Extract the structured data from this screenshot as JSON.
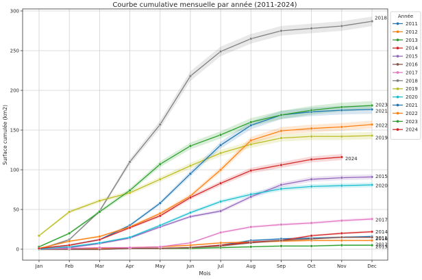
{
  "chart_data": {
    "type": "line",
    "title": "Courbe cumulative mensuelle par année (2011-2024)",
    "xlabel": "Mois",
    "ylabel": "Surface cumulée (km2)",
    "categories": [
      "Jan",
      "Feb",
      "Mar",
      "Apr",
      "May",
      "Jun",
      "Jul",
      "Aug",
      "Sep",
      "Oct",
      "Nov",
      "Dec"
    ],
    "ylim": [
      -14,
      302
    ],
    "yticks": [
      0,
      50,
      100,
      150,
      200,
      250,
      300
    ],
    "grid": true,
    "legend": {
      "title": "Année",
      "position": "outside-right-top"
    },
    "series": [
      {
        "name": "2011",
        "color": "#1f77b4",
        "values": [
          0,
          0,
          0,
          1,
          1,
          2,
          5,
          11,
          13,
          14,
          15,
          16
        ]
      },
      {
        "name": "2012",
        "color": "#ff7f0e",
        "values": [
          0,
          1,
          1,
          2,
          3,
          5,
          8,
          9,
          10,
          11,
          11,
          11
        ]
      },
      {
        "name": "2013",
        "color": "#2ca02c",
        "values": [
          0,
          0,
          0,
          1,
          1,
          1,
          2,
          3,
          4,
          4,
          5,
          5
        ]
      },
      {
        "name": "2014",
        "color": "#d62728",
        "values": [
          0,
          0,
          0,
          1,
          1,
          2,
          5,
          9,
          11,
          17,
          20,
          22
        ]
      },
      {
        "name": "2015",
        "color": "#9467bd",
        "values": [
          0,
          2,
          7,
          14,
          28,
          41,
          48,
          66,
          81,
          88,
          90,
          91
        ]
      },
      {
        "name": "2016",
        "color": "#8c564b",
        "values": [
          0,
          0,
          0,
          1,
          1,
          2,
          4,
          8,
          11,
          13,
          15,
          15
        ]
      },
      {
        "name": "2017",
        "color": "#e377c2",
        "values": [
          0,
          1,
          2,
          2,
          3,
          8,
          21,
          28,
          31,
          33,
          36,
          38
        ]
      },
      {
        "name": "2018",
        "color": "#7f7f7f",
        "values": [
          0,
          12,
          48,
          110,
          157,
          218,
          249,
          265,
          275,
          278,
          281,
          287
        ]
      },
      {
        "name": "2019",
        "color": "#bcbd22",
        "values": [
          17,
          47,
          61,
          71,
          88,
          105,
          121,
          132,
          140,
          142,
          142,
          143
        ]
      },
      {
        "name": "2020",
        "color": "#17becf",
        "values": [
          0,
          3,
          8,
          15,
          30,
          46,
          60,
          69,
          76,
          79,
          80,
          81
        ]
      },
      {
        "name": "2021",
        "color": "#1f77b4",
        "values": [
          1,
          5,
          12,
          30,
          58,
          95,
          131,
          156,
          169,
          173,
          175,
          176
        ]
      },
      {
        "name": "2022",
        "color": "#ff7f0e",
        "values": [
          1,
          10,
          16,
          28,
          45,
          67,
          100,
          137,
          149,
          152,
          154,
          157
        ]
      },
      {
        "name": "2023",
        "color": "#2ca02c",
        "values": [
          3,
          20,
          47,
          74,
          107,
          130,
          144,
          160,
          169,
          175,
          179,
          181
        ]
      },
      {
        "name": "2024",
        "color": "#d62728",
        "values": [
          1,
          5,
          12,
          27,
          42,
          65,
          83,
          99,
          106,
          113,
          116,
          null
        ]
      }
    ],
    "end_labels": [
      "2011",
      "2012",
      "2013",
      "2014",
      "2015",
      "2016",
      "2017",
      "2018",
      "2019",
      "2020",
      "2021",
      "2022",
      "2023",
      "2024"
    ]
  }
}
